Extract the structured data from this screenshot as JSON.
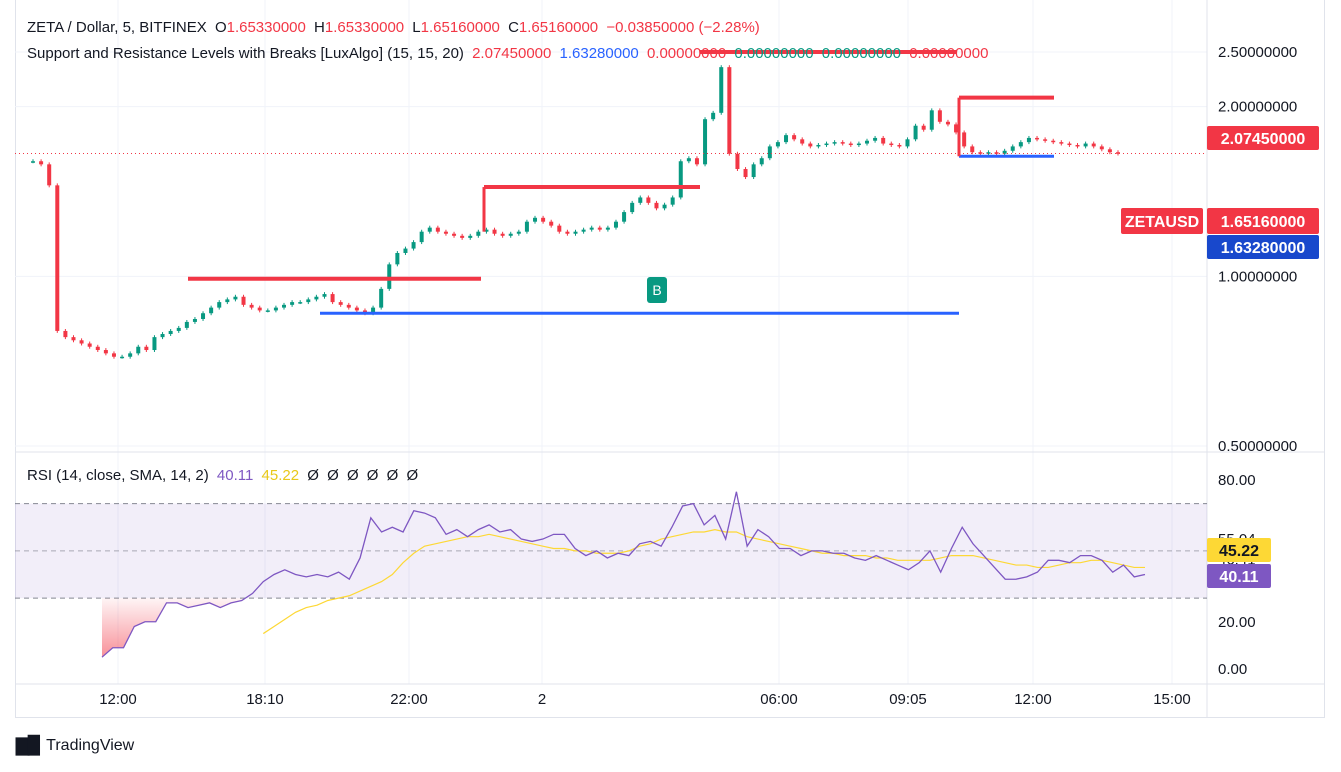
{
  "header": {
    "symbol_line": "ZETA / Dollar, 5, BITFINEX",
    "o_label": "O",
    "o_value": "1.65330000",
    "h_label": "H",
    "h_value": "1.65330000",
    "l_label": "L",
    "l_value": "1.65160000",
    "c_label": "C",
    "c_value": "1.65160000",
    "change": "−0.03850000 (−2.28%)",
    "indicator_name": "Support and Resistance Levels with Breaks [LuxAlgo] (15, 15, 20)",
    "ind_values": [
      "2.07450000",
      "1.63280000",
      "0.00000000",
      "0.00000000",
      "0.00000000",
      "0.00000000"
    ],
    "ind_colors": [
      "#f23645",
      "#2962ff",
      "#f23645",
      "#089981",
      "#089981",
      "#f23645"
    ]
  },
  "rsi_header": {
    "name": "RSI (14, close, SMA, 14, 2)",
    "rsi_value": "40.11",
    "ma_value": "45.22",
    "empty_values": [
      "Ø",
      "Ø",
      "Ø",
      "Ø",
      "Ø",
      "Ø"
    ]
  },
  "badges": {
    "resistance": "2.07450000",
    "symbol": "ZETAUSD",
    "price": "1.65160000",
    "support": "1.63280000",
    "rsi_ma": "45.22",
    "rsi": "40.11",
    "break_marker": "B"
  },
  "brand": {
    "name": "TradingView"
  },
  "colors": {
    "up": "#089981",
    "down": "#f23645",
    "support": "#2962ff",
    "resistance": "#f23645",
    "rsi": "#7e57c2",
    "rsi_ma": "#fdd835"
  },
  "chart_data": [
    {
      "type": "candlestick",
      "title": "ZETA / Dollar, 5, BITFINEX",
      "y_ticks": [
        "2.50000000",
        "2.00000000",
        "1.00000000",
        "0.50000000"
      ],
      "x_ticks": [
        "12:00",
        "18:10",
        "22:00",
        "2",
        "06:00",
        "09:05",
        "12:00",
        "15:00"
      ],
      "y_scale": "log",
      "close_series": [
        1.6,
        1.58,
        1.45,
        0.8,
        0.78,
        0.77,
        0.76,
        0.75,
        0.74,
        0.73,
        0.72,
        0.72,
        0.73,
        0.75,
        0.74,
        0.78,
        0.79,
        0.8,
        0.81,
        0.83,
        0.84,
        0.86,
        0.88,
        0.9,
        0.91,
        0.92,
        0.89,
        0.88,
        0.87,
        0.87,
        0.88,
        0.89,
        0.9,
        0.9,
        0.91,
        0.92,
        0.93,
        0.9,
        0.89,
        0.88,
        0.87,
        0.86,
        0.88,
        0.95,
        1.05,
        1.1,
        1.12,
        1.15,
        1.2,
        1.22,
        1.2,
        1.19,
        1.18,
        1.17,
        1.18,
        1.2,
        1.21,
        1.19,
        1.18,
        1.19,
        1.2,
        1.25,
        1.27,
        1.25,
        1.23,
        1.2,
        1.19,
        1.2,
        1.21,
        1.22,
        1.21,
        1.22,
        1.25,
        1.3,
        1.35,
        1.38,
        1.35,
        1.32,
        1.34,
        1.38,
        1.6,
        1.62,
        1.58,
        1.9,
        1.95,
        2.35,
        1.65,
        1.55,
        1.5,
        1.58,
        1.62,
        1.7,
        1.73,
        1.78,
        1.75,
        1.72,
        1.7,
        1.71,
        1.72,
        1.73,
        1.72,
        1.71,
        1.72,
        1.74,
        1.76,
        1.72,
        1.71,
        1.7,
        1.75,
        1.85,
        1.82,
        1.97,
        1.88,
        1.86,
        1.8,
        1.7,
        1.66,
        1.65,
        1.66,
        1.65,
        1.67,
        1.7,
        1.73,
        1.76,
        1.75,
        1.74,
        1.73,
        1.72,
        1.71,
        1.7,
        1.72,
        1.7,
        1.68,
        1.66,
        1.6516
      ],
      "resistance_levels": [
        {
          "from_x": "16:30",
          "to_x": "00:00",
          "value": 0.99
        },
        {
          "from_x": "00:20",
          "to_x": "03:30",
          "value": 1.44
        },
        {
          "from_x": "03:30",
          "to_x": "09:20",
          "value": 2.5
        },
        {
          "from_x": "10:20",
          "to_x": "12:30",
          "value": 2.0745
        }
      ],
      "support_levels": [
        {
          "from_x": "19:40",
          "to_x": "10:20",
          "value": 0.86
        },
        {
          "from_x": "10:20",
          "to_x": "12:30",
          "value": 1.6328
        }
      ],
      "markers": [
        {
          "label": "B",
          "x": "03:10"
        }
      ],
      "last_price": 1.6516
    },
    {
      "type": "line",
      "title": "RSI (14, close, SMA, 14, 2)",
      "y_ticks": [
        "80.00",
        "55.04",
        "46.41",
        "20.00",
        "0.00"
      ],
      "ylim": [
        0,
        85
      ],
      "bands": {
        "upper": 70,
        "middle": 50,
        "lower": 30
      },
      "series": [
        {
          "name": "RSI",
          "values": [
            5,
            9,
            9,
            18,
            20,
            20,
            28,
            28,
            26,
            27,
            28,
            26,
            28,
            29,
            32,
            37,
            40,
            42,
            40,
            39,
            40,
            39,
            41,
            38,
            47,
            64,
            58,
            60,
            58,
            67,
            66,
            64,
            57,
            59,
            56,
            59,
            61,
            58,
            59,
            55,
            54,
            55,
            57,
            57,
            51,
            48,
            50,
            47,
            49,
            48,
            53,
            54,
            52,
            60,
            69,
            70,
            61,
            65,
            55,
            75,
            52,
            59,
            56,
            51,
            51,
            48,
            50,
            50,
            49,
            49,
            47,
            46,
            48,
            46,
            44,
            42,
            45,
            50,
            41,
            51,
            60,
            53,
            48,
            43,
            38,
            38,
            39,
            41,
            46,
            46,
            45,
            48,
            48,
            46,
            41,
            44,
            39,
            40
          ]
        },
        {
          "name": "MA",
          "values": [
            null,
            null,
            null,
            null,
            null,
            null,
            null,
            null,
            null,
            null,
            null,
            null,
            null,
            null,
            null,
            15,
            18,
            21,
            24,
            26,
            27,
            29,
            30,
            31,
            33,
            35,
            37,
            40,
            45,
            49,
            52,
            53,
            54,
            55,
            56,
            56,
            57,
            56,
            55,
            54,
            53,
            52,
            51,
            51,
            50,
            50,
            49,
            49,
            49,
            50,
            52,
            53,
            55,
            56,
            57,
            58,
            58,
            59,
            58,
            58,
            56,
            55,
            54,
            53,
            52,
            51,
            50,
            49,
            49,
            48,
            48,
            48,
            47,
            47,
            46,
            46,
            46,
            46,
            47,
            48,
            48,
            48,
            47,
            46,
            45,
            44,
            44,
            43,
            43,
            44,
            45,
            45,
            46,
            46,
            45,
            44,
            43,
            43
          ]
        }
      ]
    }
  ]
}
